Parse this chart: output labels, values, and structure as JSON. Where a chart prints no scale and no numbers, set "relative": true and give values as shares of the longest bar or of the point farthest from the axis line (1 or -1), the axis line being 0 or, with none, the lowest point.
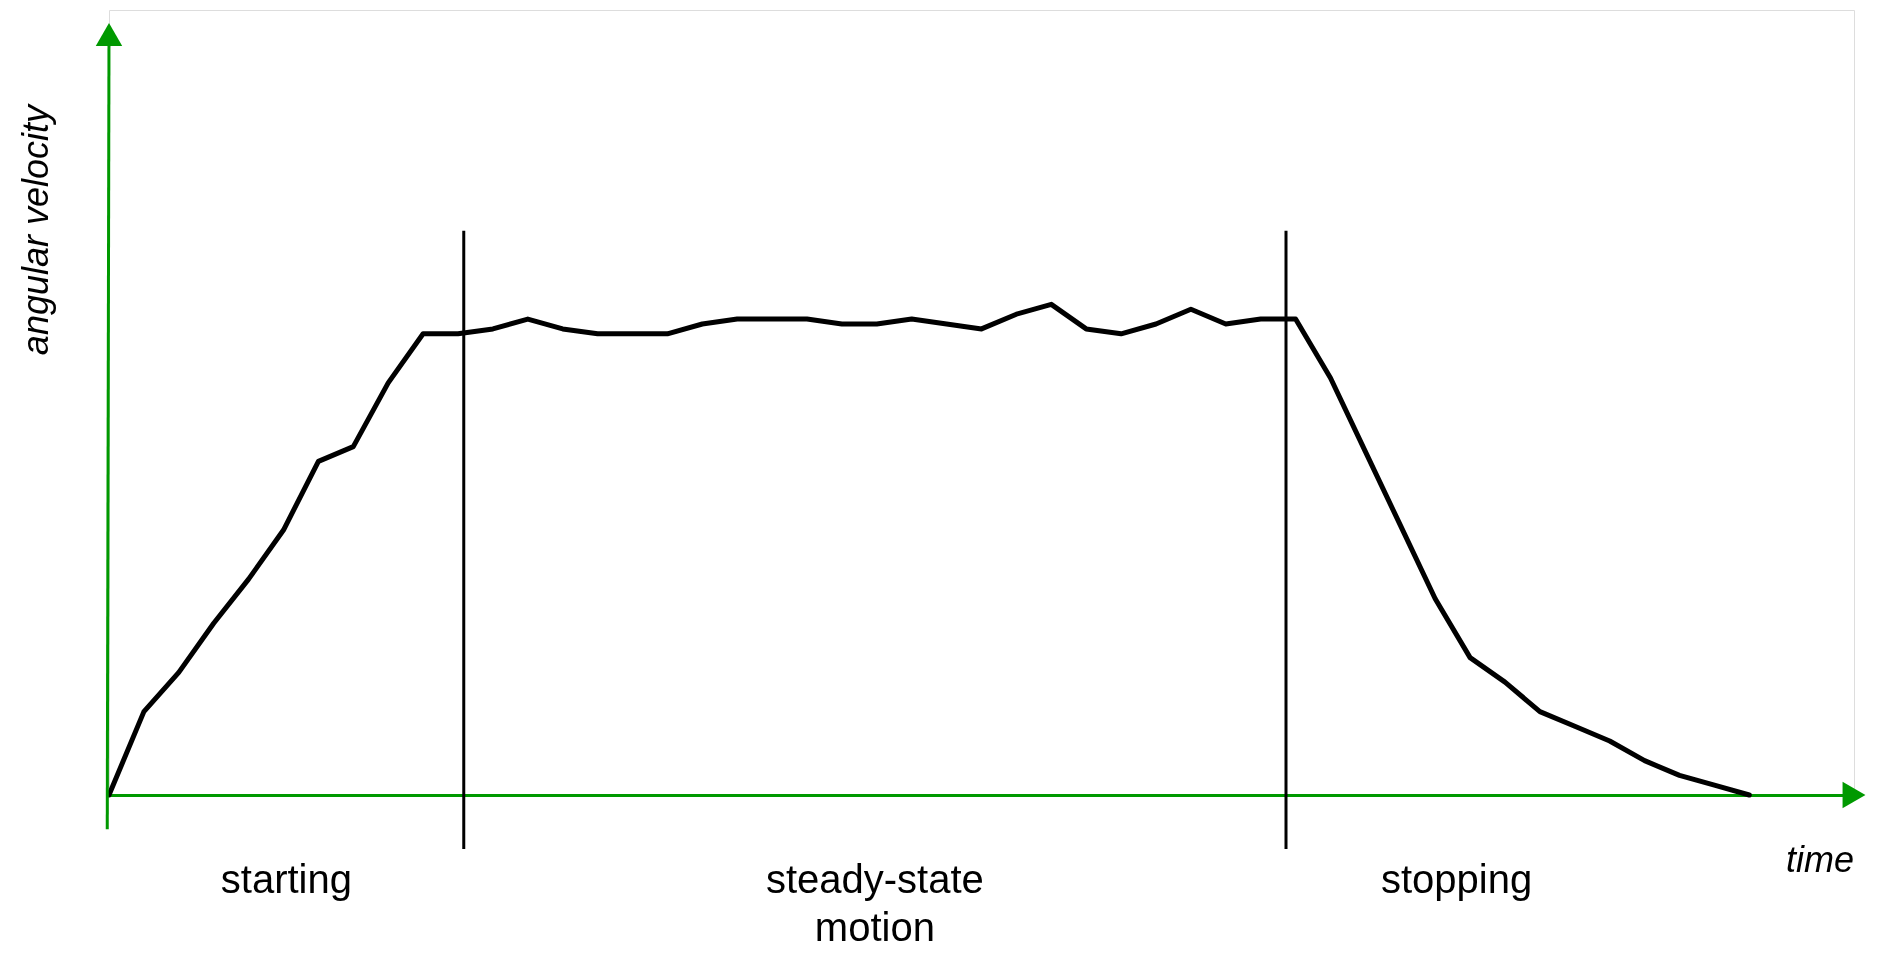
{
  "chart_data": {
    "type": "line",
    "relative": true,
    "xlabel": "time",
    "ylabel": "angular velocity",
    "marker": "none",
    "line_style": "solid",
    "categories": [
      null,
      null,
      null,
      null,
      null,
      null,
      null,
      null,
      null,
      null,
      null,
      null,
      null,
      null,
      null,
      null,
      null,
      null,
      null,
      null,
      null,
      null,
      null,
      null,
      null,
      null,
      null,
      null,
      null,
      null,
      null,
      null,
      null,
      null,
      null,
      null,
      null,
      null,
      null,
      null,
      null,
      null,
      null,
      null,
      null,
      null,
      null,
      null
    ],
    "series": [
      {
        "color": "#000000",
        "values": [
          0,
          0.17,
          0.25,
          0.35,
          0.44,
          0.54,
          0.68,
          0.71,
          0.84,
          0.94,
          0.94,
          0.95,
          0.97,
          0.95,
          0.94,
          0.94,
          0.94,
          0.96,
          0.97,
          0.97,
          0.97,
          0.96,
          0.96,
          0.97,
          0.96,
          0.95,
          0.98,
          1,
          0.95,
          0.94,
          0.96,
          0.99,
          0.96,
          0.97,
          0.97,
          0.85,
          0.7,
          0.55,
          0.4,
          0.28,
          0.23,
          0.17,
          0.14,
          0.11,
          0.07,
          0.04,
          0.02,
          0
        ]
      }
    ],
    "annotations": [
      "starting",
      "steady-state motion",
      "stopping"
    ]
  }
}
